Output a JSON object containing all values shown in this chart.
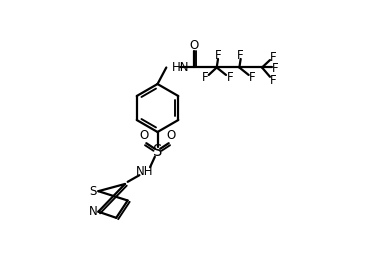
{
  "bg_color": "#ffffff",
  "line_color": "#000000",
  "line_width": 1.6,
  "font_size": 8.5,
  "figsize": [
    3.79,
    2.56
  ],
  "dpi": 100,
  "xlim": [
    0,
    10
  ],
  "ylim": [
    0,
    9.5
  ]
}
